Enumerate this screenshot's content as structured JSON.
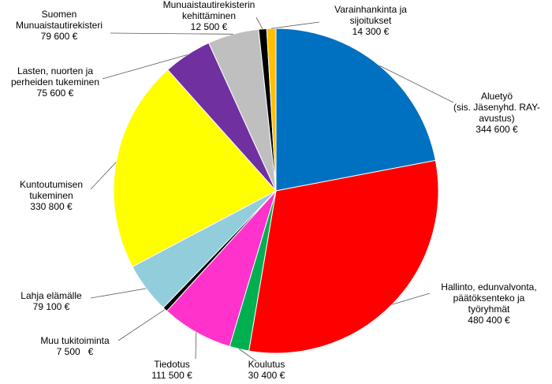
{
  "chart_data": {
    "type": "pie",
    "categories": [
      "Aluetyö\n(sis. Jäsenyhd. RAY-\navustus)",
      "Hallinto, edunvalvonta,\npäätöksenteko ja\ntyöryhmät",
      "Koulutus",
      "Tiedotus",
      "Muu tukitoiminta",
      "Lahja elämälle",
      "Kuntoutumisen\ntukeminen",
      "Lasten, nuorten ja\nperheiden tukeminen",
      "Suomen\nMunuaistautirekisteri",
      "Munuaistautirekisterin\nkehittäminen",
      "Varainhankinta ja\nsijoitukset"
    ],
    "values": [
      344600,
      480400,
      30400,
      111500,
      7500,
      79100,
      330800,
      75600,
      79600,
      12500,
      14300
    ],
    "value_labels": [
      "344 600 €",
      "480 400 €",
      "30 400 €",
      "111 500 €",
      "7 500   €",
      "79 100 €",
      "330 800 €",
      "75 600 €",
      "79 600 €",
      "12 500 €",
      "14 300 €"
    ],
    "colors": [
      "#0070c0",
      "#ff0000",
      "#00b050",
      "#ff33cc",
      "#000000",
      "#92cddc",
      "#ffff00",
      "#7030a0",
      "#bfbfbf",
      "#000000",
      "#ffc000"
    ]
  }
}
